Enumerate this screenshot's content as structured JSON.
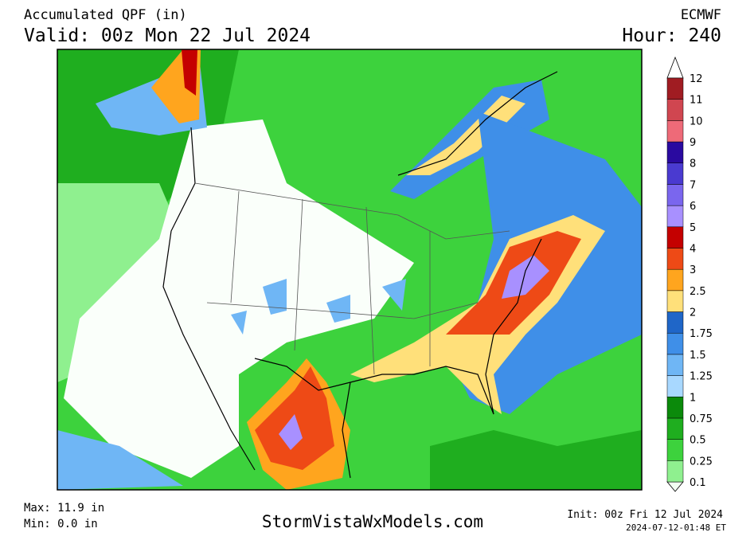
{
  "header": {
    "title": "Accumulated QPF (in)",
    "valid": "Valid: 00z Mon 22 Jul 2024",
    "model": "ECMWF",
    "hour": "Hour: 240"
  },
  "colorbar": {
    "labels": [
      "0.1",
      "0.25",
      "0.5",
      "0.75",
      "1",
      "1.25",
      "1.5",
      "1.75",
      "2",
      "2.5",
      "3",
      "4",
      "5",
      "6",
      "7",
      "8",
      "9",
      "10",
      "11",
      "12"
    ],
    "colors": [
      "#8ff08f",
      "#3dd23d",
      "#1fae1f",
      "#0b8a0b",
      "#a8d8ff",
      "#6fb6f5",
      "#3f8fe8",
      "#1f66c8",
      "#ffe07a",
      "#ffa51e",
      "#ee4a16",
      "#c40000",
      "#a890ff",
      "#7a66ee",
      "#4a3ad0",
      "#2a0aa0",
      "#ee6a78",
      "#d04650",
      "#a01c22"
    ]
  },
  "footer": {
    "max": "Max: 11.9 in",
    "min": "Min: 0.0 in",
    "site": "StormVistaWxModels.com",
    "init": "Init: 00z Fri 12 Jul 2024",
    "stamp": "2024-07-12-01:48 ET"
  }
}
